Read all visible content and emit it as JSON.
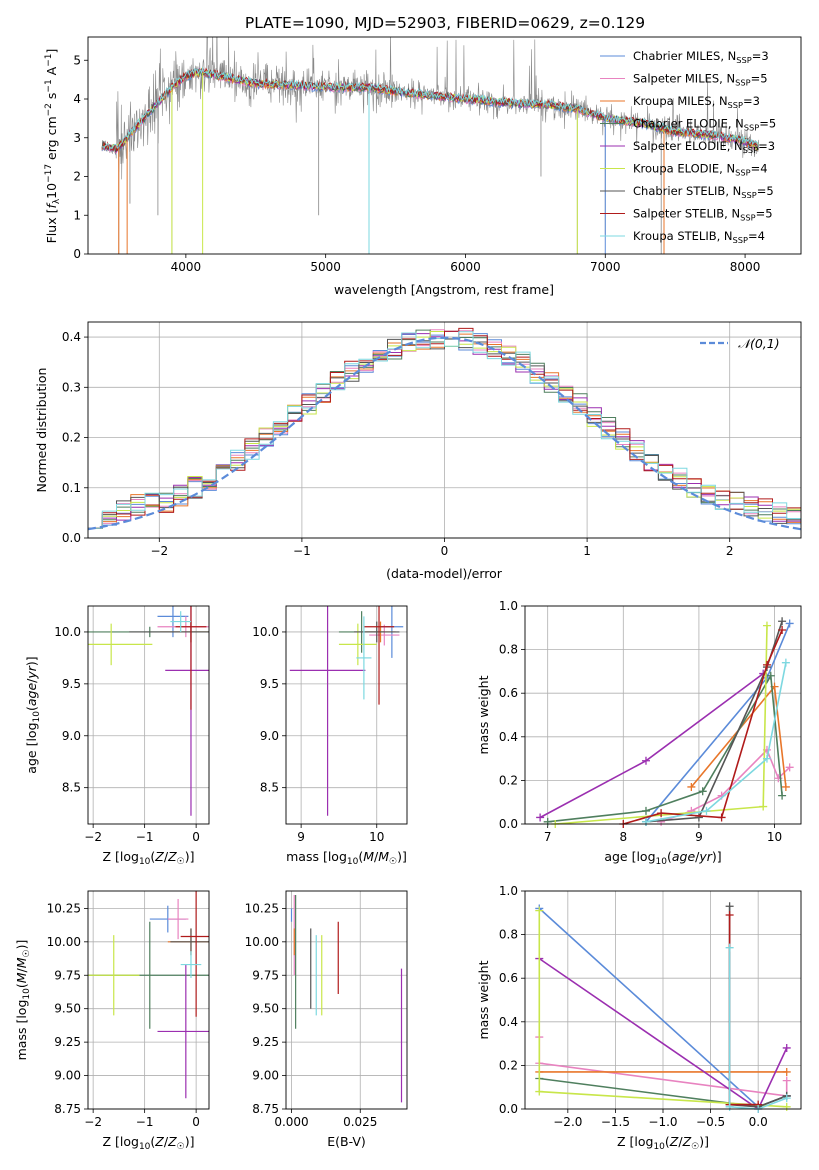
{
  "colors": {
    "chabrier_miles": "#5b8bd9",
    "salpeter_miles": "#e883c0",
    "kroupa_miles": "#e8762a",
    "chabrier_elodie": "#4f7f5e",
    "salpeter_elodie": "#9b2fb0",
    "kroupa_elodie": "#c8e64a",
    "chabrier_stelib": "#555555",
    "salpeter_stelib": "#b01b1b",
    "kroupa_stelib": "#7dd8e0",
    "data": "#888888",
    "gaussian": "#5b8bd9",
    "grid": "#b0b0b0"
  },
  "chart_data": [
    {
      "type": "line",
      "id": "spectrum",
      "title": "PLATE=1090, MJD=52903, FIBERID=0629, z=0.129",
      "xlabel": "wavelength [Angstrom, rest frame]",
      "ylabel": "Flux [f_λ 10^-17 erg cm^-2 s^-1 A^-1]",
      "xlim": [
        3300,
        8400
      ],
      "ylim": [
        0,
        5.6
      ],
      "xticks": [
        "4000",
        "5000",
        "6000",
        "7000",
        "8000"
      ],
      "yticks": [
        "0",
        "1",
        "2",
        "3",
        "4",
        "5"
      ],
      "grid": false,
      "legend_position": "top-right",
      "continuum": {
        "x": [
          3400,
          3500,
          3550,
          3600,
          3700,
          3800,
          3900,
          4000,
          4100,
          4300,
          4500,
          4800,
          5000,
          5300,
          5600,
          6000,
          6300,
          6600,
          6800,
          7000,
          7300,
          7500,
          7800,
          8000,
          8100
        ],
        "y": [
          2.8,
          2.7,
          2.85,
          3.1,
          3.5,
          3.9,
          4.3,
          4.6,
          4.7,
          4.55,
          4.4,
          4.35,
          4.3,
          4.3,
          4.15,
          4.0,
          3.9,
          3.85,
          3.75,
          3.5,
          3.35,
          3.15,
          3.05,
          2.9,
          2.75
        ]
      },
      "series": [
        {
          "name": "Chabrier MILES",
          "nssp": "3"
        },
        {
          "name": "Salpeter MILES",
          "nssp": "5"
        },
        {
          "name": "Kroupa MILES",
          "nssp": "3"
        },
        {
          "name": "Chabrier ELODIE",
          "nssp": "5"
        },
        {
          "name": "Salpeter ELODIE",
          "nssp": "3"
        },
        {
          "name": "Kroupa ELODIE",
          "nssp": "4"
        },
        {
          "name": "Chabrier STELIB",
          "nssp": "5"
        },
        {
          "name": "Salpeter STELIB",
          "nssp": "5"
        },
        {
          "name": "Kroupa STELIB",
          "nssp": "4"
        }
      ],
      "drops": [
        {
          "x": 3520,
          "y": 0
        },
        {
          "x": 3600,
          "y": 1.3
        },
        {
          "x": 3800,
          "y": 1.0
        },
        {
          "x": 3900,
          "y": 0
        },
        {
          "x": 4950,
          "y": 1.0
        },
        {
          "x": 5310,
          "y": 0
        },
        {
          "x": 6540,
          "y": 2.0
        },
        {
          "x": 6800,
          "y": 0
        },
        {
          "x": 7000,
          "y": 0.5
        },
        {
          "x": 7400,
          "y": 0
        }
      ]
    },
    {
      "type": "line",
      "id": "residuals",
      "xlabel": "(data-model)/error",
      "ylabel": "Normed distribution",
      "xlim": [
        -2.5,
        2.5
      ],
      "ylim": [
        0,
        0.43
      ],
      "xticks": [
        "−2",
        "−1",
        "0",
        "1",
        "2"
      ],
      "yticks": [
        "0.0",
        "0.1",
        "0.2",
        "0.3",
        "0.4"
      ],
      "grid": true,
      "legend": "𝒩(0,1)",
      "legend_position": "top-right",
      "bin_width": 0.1
    },
    {
      "type": "scatter",
      "id": "age_vs_z",
      "xlabel": "Z [log10(Z/Z☉)]",
      "ylabel": "age  [log10(age/yr)]",
      "xlim": [
        -2.1,
        0.25
      ],
      "ylim": [
        8.15,
        10.25
      ],
      "xticks": [
        "−2",
        "−1",
        "0"
      ],
      "yticks": [
        "8.5",
        "9.0",
        "9.5",
        "10.0"
      ],
      "grid": true,
      "points": [
        {
          "series": 0,
          "x": -0.45,
          "y": 10.15,
          "xerr": 0.3,
          "yerr": 0.2
        },
        {
          "series": 1,
          "x": -0.2,
          "y": 10.05,
          "xerr": 0.55,
          "yerr": 0.1
        },
        {
          "series": 2,
          "x": -0.1,
          "y": 10.0,
          "xerr": 0.6,
          "yerr": 0.1
        },
        {
          "series": 3,
          "x": -0.9,
          "y": 10.0,
          "xerr": 1.2,
          "yerr": 0.05
        },
        {
          "series": 4,
          "x": -0.1,
          "y": 9.63,
          "xerr": 0.5,
          "yerr": 1.4
        },
        {
          "series": 5,
          "x": -1.65,
          "y": 9.88,
          "xerr": 0.8,
          "yerr": 0.2
        },
        {
          "series": 6,
          "x": -0.1,
          "y": 10.0,
          "xerr": 1.2,
          "yerr": 0.1
        },
        {
          "series": 7,
          "x": -0.1,
          "y": 10.05,
          "xerr": 0.3,
          "yerr": 0.8
        },
        {
          "series": 8,
          "x": -0.3,
          "y": 10.1,
          "xerr": 0.2,
          "yerr": 0.1
        }
      ]
    },
    {
      "type": "scatter",
      "id": "age_vs_mass",
      "xlabel": "mass [log10(M/M☉)]",
      "ylabel": "",
      "xlim": [
        8.8,
        10.4
      ],
      "ylim": [
        8.15,
        10.25
      ],
      "xticks": [
        "9",
        "10"
      ],
      "yticks": [
        "8.5",
        "9.0",
        "9.5",
        "10.0"
      ],
      "grid": true,
      "points": [
        {
          "series": 0,
          "x": 10.2,
          "y": 10.05,
          "xerr": 0.15,
          "yerr": 0.3
        },
        {
          "series": 1,
          "x": 10.1,
          "y": 9.97,
          "xerr": 0.2,
          "yerr": 0.1
        },
        {
          "series": 2,
          "x": 10.05,
          "y": 10.0,
          "xerr": 0.2,
          "yerr": 0.1
        },
        {
          "series": 3,
          "x": 9.8,
          "y": 10.0,
          "xerr": 0.3,
          "yerr": 0.2
        },
        {
          "series": 4,
          "x": 9.35,
          "y": 9.63,
          "xerr": 0.5,
          "yerr": 1.4
        },
        {
          "series": 5,
          "x": 9.75,
          "y": 9.88,
          "xerr": 0.25,
          "yerr": 0.2
        },
        {
          "series": 6,
          "x": 10.0,
          "y": 10.0,
          "xerr": 0.3,
          "yerr": 0.1
        },
        {
          "series": 7,
          "x": 10.03,
          "y": 10.05,
          "xerr": 0.2,
          "yerr": 0.75
        },
        {
          "series": 8,
          "x": 9.83,
          "y": 9.75,
          "xerr": 0.1,
          "yerr": 0.4
        }
      ]
    },
    {
      "type": "line",
      "id": "weight_vs_age",
      "xlabel": "age  [log10(age/yr)]",
      "ylabel": "mass weight",
      "xlim": [
        6.7,
        10.35
      ],
      "ylim": [
        0,
        1.0
      ],
      "xticks": [
        "7",
        "8",
        "9",
        "10"
      ],
      "yticks": [
        "0.0",
        "0.2",
        "0.4",
        "0.6",
        "0.8",
        "1.0"
      ],
      "grid": true,
      "series": [
        {
          "series": 0,
          "x": [
            8.3,
            9.9,
            10.2
          ],
          "y": [
            0.01,
            0.67,
            0.92
          ]
        },
        {
          "series": 1,
          "x": [
            8.5,
            8.9,
            9.3,
            9.9,
            10.05,
            10.2
          ],
          "y": [
            0.01,
            0.06,
            0.13,
            0.34,
            0.21,
            0.26
          ]
        },
        {
          "series": 2,
          "x": [
            8.9,
            10.0,
            10.15
          ],
          "y": [
            0.17,
            0.63,
            0.17
          ]
        },
        {
          "series": 3,
          "x": [
            7.0,
            8.3,
            9.05,
            9.95,
            10.1
          ],
          "y": [
            0.01,
            0.06,
            0.15,
            0.68,
            0.13
          ]
        },
        {
          "series": 4,
          "x": [
            6.9,
            8.3,
            9.85
          ],
          "y": [
            0.03,
            0.29,
            0.69
          ]
        },
        {
          "series": 5,
          "x": [
            7.1,
            9.85,
            9.9
          ],
          "y": [
            0.0,
            0.08,
            0.91
          ]
        },
        {
          "series": 6,
          "x": [
            8.3,
            9.0,
            9.9,
            10.1
          ],
          "y": [
            0.01,
            0.03,
            0.72,
            0.93
          ]
        },
        {
          "series": 7,
          "x": [
            8.0,
            8.5,
            9.3,
            9.9,
            10.1
          ],
          "y": [
            0.0,
            0.05,
            0.03,
            0.73,
            0.89
          ]
        },
        {
          "series": 8,
          "x": [
            8.3,
            9.1,
            9.9,
            10.15
          ],
          "y": [
            0.01,
            0.06,
            0.3,
            0.74
          ]
        }
      ]
    },
    {
      "type": "scatter",
      "id": "mass_vs_z",
      "xlabel": "Z [log10(Z/Z☉)]",
      "ylabel": "mass [log10(M/M☉)]",
      "xlim": [
        -2.1,
        0.25
      ],
      "ylim": [
        8.75,
        10.38
      ],
      "xticks": [
        "−2",
        "−1",
        "0"
      ],
      "yticks": [
        "8.75",
        "9.00",
        "9.25",
        "9.50",
        "9.75",
        "10.00",
        "10.25"
      ],
      "grid": true,
      "points": [
        {
          "series": 0,
          "x": -0.55,
          "y": 10.17,
          "xerr": 0.35,
          "yerr": 0.1
        },
        {
          "series": 1,
          "x": -0.35,
          "y": 10.17,
          "xerr": 0.2,
          "yerr": 0.15
        },
        {
          "series": 2,
          "x": -0.1,
          "y": 10.0,
          "xerr": 0.45,
          "yerr": 0.1
        },
        {
          "series": 3,
          "x": -0.9,
          "y": 9.75,
          "xerr": 1.25,
          "yerr": 0.4
        },
        {
          "series": 4,
          "x": -0.2,
          "y": 9.33,
          "xerr": 0.55,
          "yerr": 0.5
        },
        {
          "series": 5,
          "x": -1.6,
          "y": 9.75,
          "xerr": 0.5,
          "yerr": 0.3
        },
        {
          "series": 6,
          "x": -0.1,
          "y": 10.0,
          "xerr": 0.4,
          "yerr": 0.1
        },
        {
          "series": 7,
          "x": 0.0,
          "y": 10.04,
          "xerr": 0.3,
          "yerr": 0.6
        },
        {
          "series": 8,
          "x": -0.1,
          "y": 9.83,
          "xerr": 0.2,
          "yerr": 0.1
        }
      ]
    },
    {
      "type": "scatter",
      "id": "mass_vs_ebv",
      "xlabel": "E(B-V)",
      "ylabel": "",
      "xlim": [
        -0.002,
        0.042
      ],
      "ylim": [
        8.75,
        10.38
      ],
      "xticks": [
        "0.000",
        "0.025"
      ],
      "yticks": [
        "8.75",
        "9.00",
        "9.25",
        "9.50",
        "9.75",
        "10.00",
        "10.25"
      ],
      "grid": true,
      "points": [
        {
          "series": 0,
          "x": 0.0,
          "y": 10.2,
          "xerr": 0,
          "yerr": 0.05
        },
        {
          "series": 1,
          "x": 0.001,
          "y": 10.05,
          "xerr": 0,
          "yerr": 0.3
        },
        {
          "series": 2,
          "x": 0.001,
          "y": 10.0,
          "xerr": 0,
          "yerr": 0.1
        },
        {
          "series": 3,
          "x": 0.0015,
          "y": 9.85,
          "xerr": 0,
          "yerr": 0.5
        },
        {
          "series": 4,
          "x": 0.04,
          "y": 9.3,
          "xerr": 0,
          "yerr": 0.5
        },
        {
          "series": 5,
          "x": 0.011,
          "y": 9.75,
          "xerr": 0,
          "yerr": 0.3
        },
        {
          "series": 6,
          "x": 0.007,
          "y": 9.8,
          "xerr": 0,
          "yerr": 0.3
        },
        {
          "series": 7,
          "x": 0.017,
          "y": 9.88,
          "xerr": 0,
          "yerr": 0.27
        },
        {
          "series": 8,
          "x": 0.009,
          "y": 9.75,
          "xerr": 0,
          "yerr": 0.3
        }
      ]
    },
    {
      "type": "line",
      "id": "weight_vs_z",
      "xlabel": "Z [log10(Z/Z☉)]",
      "ylabel": "mass weight",
      "xlim": [
        -2.45,
        0.45
      ],
      "ylim": [
        0,
        1.0
      ],
      "xticks": [
        "−2.0",
        "−1.5",
        "−1.0",
        "−0.5",
        "0.0"
      ],
      "yticks": [
        "0.0",
        "0.2",
        "0.4",
        "0.6",
        "0.8",
        "1.0"
      ],
      "grid": true,
      "series": [
        {
          "series": 0,
          "x": [
            -2.3,
            0.0,
            0.3
          ],
          "y": [
            0.92,
            0.01,
            0.06
          ]
        },
        {
          "series": 1,
          "x": [
            -2.3,
            -2.3,
            0.3,
            0.3
          ],
          "y": [
            0.33,
            0.21,
            0.06,
            0.13
          ]
        },
        {
          "series": 2,
          "x": [
            -2.3,
            0.3
          ],
          "y": [
            0.17,
            0.17
          ]
        },
        {
          "series": 3,
          "x": [
            -2.3,
            0.0,
            0.3
          ],
          "y": [
            0.14,
            0.01,
            0.06
          ]
        },
        {
          "series": 4,
          "x": [
            -2.3,
            0.0,
            0.3
          ],
          "y": [
            0.69,
            0.0,
            0.28
          ]
        },
        {
          "series": 5,
          "x": [
            -2.3,
            -2.3,
            0.3
          ],
          "y": [
            0.91,
            0.08,
            0.01
          ]
        },
        {
          "series": 6,
          "x": [
            -0.3,
            -0.3,
            0.0,
            0.3
          ],
          "y": [
            0.93,
            0.02,
            0.01,
            0.06
          ]
        },
        {
          "series": 7,
          "x": [
            -0.3,
            -0.3,
            0.0
          ],
          "y": [
            0.89,
            0.02,
            0.02
          ]
        },
        {
          "series": 8,
          "x": [
            -0.3,
            -0.3,
            0.0,
            0.3
          ],
          "y": [
            0.74,
            0.01,
            0.0,
            0.05
          ]
        }
      ]
    }
  ]
}
